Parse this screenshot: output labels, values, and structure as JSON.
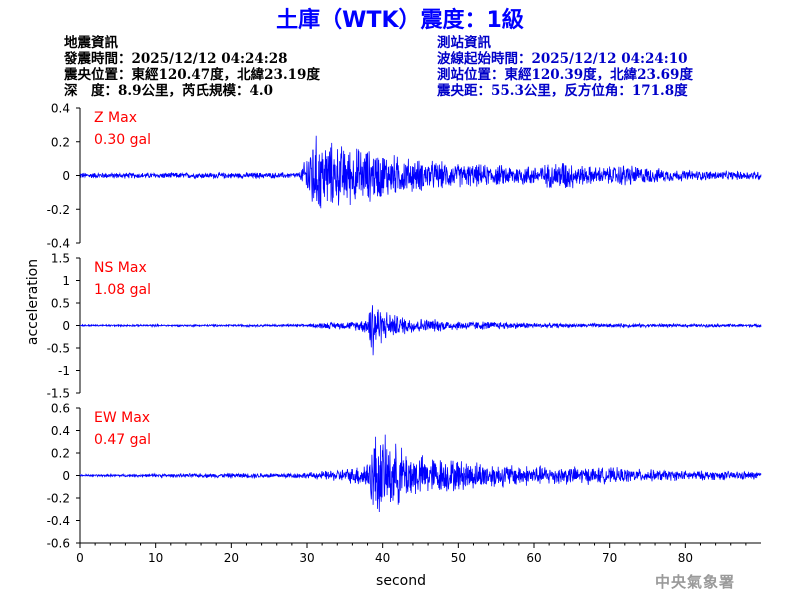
{
  "title": "土庫（WTK）震度：1級",
  "quake_info": {
    "header": "地震資訊",
    "origin_time": "發震時間：2025/12/12 04:24:28",
    "epicenter": "震央位置：東經120.47度，北緯23.19度",
    "depth": "深　度：8.9公里，芮氏規模：4.0"
  },
  "station_info": {
    "header": "測站資訊",
    "wave_start": "波線起始時間：2025/12/12 04:24:10",
    "location": "測站位置：東經120.39度，北緯23.69度",
    "distance": "震央距：55.3公里，反方位角：171.8度"
  },
  "agency": "中央氣象署",
  "colors": {
    "title": "#0000ff",
    "trace": "#0000ff",
    "max_label": "#ff0000",
    "station_info": "#0000c8",
    "agency": "#9a9a9a"
  },
  "chart_data": {
    "type": "line",
    "xlabel": "second",
    "ylabel": "acceleration",
    "xlim": [
      0,
      90
    ],
    "x_ticks": [
      0,
      10,
      20,
      30,
      40,
      50,
      60,
      70,
      80
    ],
    "panels": [
      {
        "name": "Z",
        "max_label": "Z Max",
        "max_value": "0.30 gal",
        "ylim": [
          -0.4,
          0.4
        ],
        "y_ticks": [
          -0.4,
          -0.2,
          0,
          0.2,
          0.4
        ],
        "envelope": [
          [
            0,
            0.02
          ],
          [
            29,
            0.02
          ],
          [
            29.7,
            0.1
          ],
          [
            30.5,
            0.28
          ],
          [
            31.5,
            0.26
          ],
          [
            33,
            0.22
          ],
          [
            35,
            0.2
          ],
          [
            38,
            0.18
          ],
          [
            40,
            0.16
          ],
          [
            43,
            0.12
          ],
          [
            46,
            0.1
          ],
          [
            50,
            0.08
          ],
          [
            55,
            0.07
          ],
          [
            60,
            0.07
          ],
          [
            62,
            0.08
          ],
          [
            64,
            0.11
          ],
          [
            66,
            0.07
          ],
          [
            68,
            0.06
          ],
          [
            70,
            0.06
          ],
          [
            72,
            0.08
          ],
          [
            74,
            0.06
          ],
          [
            78,
            0.04
          ],
          [
            84,
            0.03
          ],
          [
            90,
            0.03
          ]
        ]
      },
      {
        "name": "NS",
        "max_label": "NS Max",
        "max_value": "1.08 gal",
        "ylim": [
          -1.5,
          1.5
        ],
        "y_ticks": [
          -1.5,
          -1,
          -0.5,
          0,
          0.5,
          1,
          1.5
        ],
        "envelope": [
          [
            0,
            0.02
          ],
          [
            30,
            0.03
          ],
          [
            32,
            0.08
          ],
          [
            36,
            0.1
          ],
          [
            38,
            0.2
          ],
          [
            38.5,
            1.08
          ],
          [
            39.2,
            0.6
          ],
          [
            40,
            0.4
          ],
          [
            42,
            0.25
          ],
          [
            45,
            0.18
          ],
          [
            50,
            0.12
          ],
          [
            55,
            0.1
          ],
          [
            60,
            0.07
          ],
          [
            65,
            0.05
          ],
          [
            70,
            0.05
          ],
          [
            80,
            0.04
          ],
          [
            90,
            0.04
          ]
        ]
      },
      {
        "name": "EW",
        "max_label": "EW Max",
        "max_value": "0.47 gal",
        "ylim": [
          -0.6,
          0.6
        ],
        "y_ticks": [
          -0.6,
          -0.4,
          -0.2,
          0,
          0.2,
          0.4,
          0.6
        ],
        "envelope": [
          [
            0,
            0.01
          ],
          [
            30,
            0.03
          ],
          [
            33,
            0.05
          ],
          [
            36,
            0.08
          ],
          [
            38,
            0.15
          ],
          [
            39,
            0.45
          ],
          [
            40,
            0.38
          ],
          [
            42,
            0.3
          ],
          [
            45,
            0.2
          ],
          [
            50,
            0.16
          ],
          [
            55,
            0.12
          ],
          [
            60,
            0.1
          ],
          [
            65,
            0.09
          ],
          [
            70,
            0.08
          ],
          [
            75,
            0.06
          ],
          [
            80,
            0.05
          ],
          [
            90,
            0.04
          ]
        ]
      }
    ]
  }
}
